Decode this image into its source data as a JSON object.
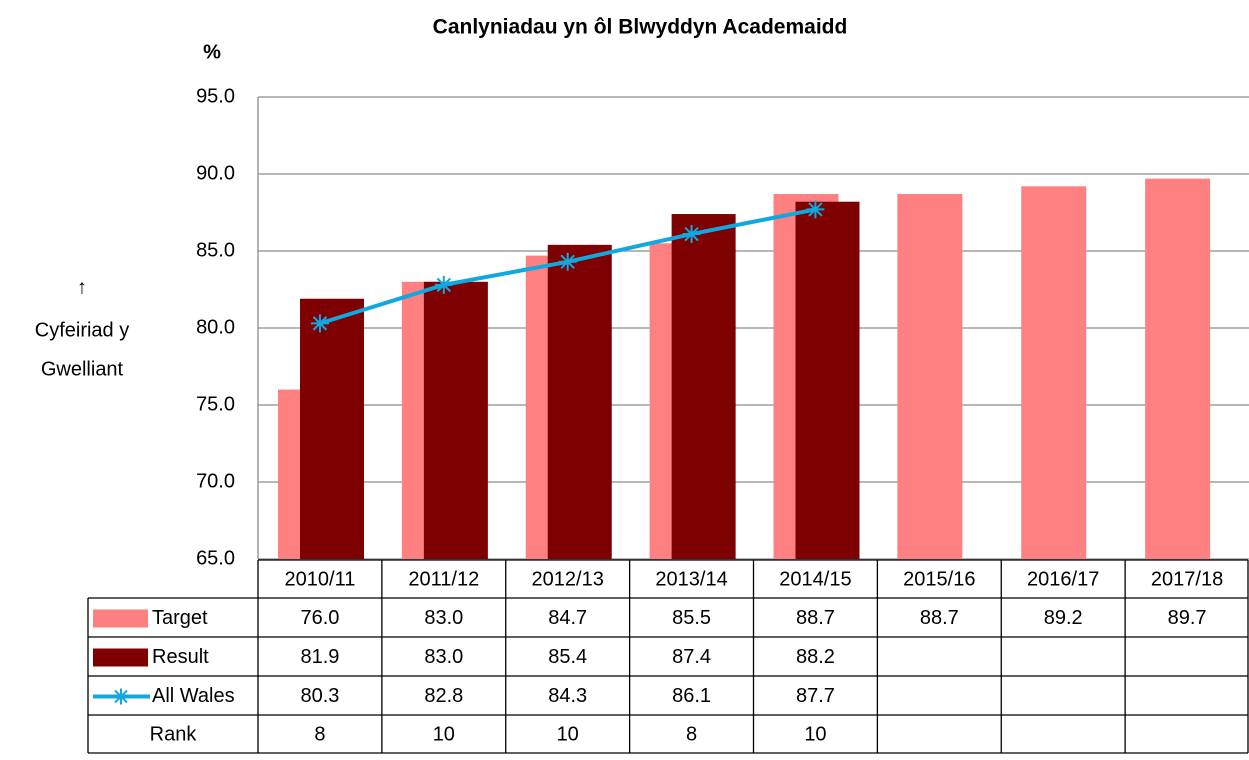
{
  "chart_data": {
    "type": "bar",
    "title": "Canlyniadau yn ôl Blwyddyn Academaidd",
    "y_label": "%",
    "annotation": [
      "↑",
      "Cyfeiriad y",
      "Gwelliant"
    ],
    "categories": [
      "2010/11",
      "2011/12",
      "2012/13",
      "2013/14",
      "2014/15",
      "2015/16",
      "2016/17",
      "2017/18"
    ],
    "series": [
      {
        "name": "Target",
        "type": "bar",
        "color": "#ff8080",
        "values": [
          76.0,
          83.0,
          84.7,
          85.5,
          88.7,
          88.7,
          89.2,
          89.7
        ],
        "value_labels": [
          "76.0",
          "83.0",
          "84.7",
          "85.5",
          "88.7",
          "88.7",
          "89.2",
          "89.7"
        ]
      },
      {
        "name": "Result",
        "type": "bar",
        "color": "#7f0000",
        "values": [
          81.9,
          83.0,
          85.4,
          87.4,
          88.2,
          null,
          null,
          null
        ],
        "value_labels": [
          "81.9",
          "83.0",
          "85.4",
          "87.4",
          "88.2",
          null,
          null,
          null
        ]
      },
      {
        "name": "All Wales",
        "type": "line",
        "color": "#11a8e0",
        "values": [
          80.3,
          82.8,
          84.3,
          86.1,
          87.7,
          null,
          null,
          null
        ],
        "value_labels": [
          "80.3",
          "82.8",
          "84.3",
          "86.1",
          "87.7",
          null,
          null,
          null
        ]
      }
    ],
    "table_rows": [
      {
        "name": "Rank",
        "values": [
          8,
          10,
          10,
          8,
          10,
          null,
          null,
          null
        ]
      }
    ],
    "ylim": [
      65,
      95
    ],
    "yticks": [
      {
        "value": 65,
        "label": "65.0"
      },
      {
        "value": 70,
        "label": "70.0"
      },
      {
        "value": 75,
        "label": "75.0"
      },
      {
        "value": 80,
        "label": "80.0"
      },
      {
        "value": 85,
        "label": "85.0"
      },
      {
        "value": 90,
        "label": "90.0"
      },
      {
        "value": 95,
        "label": "95.0"
      }
    ],
    "grid": true
  }
}
